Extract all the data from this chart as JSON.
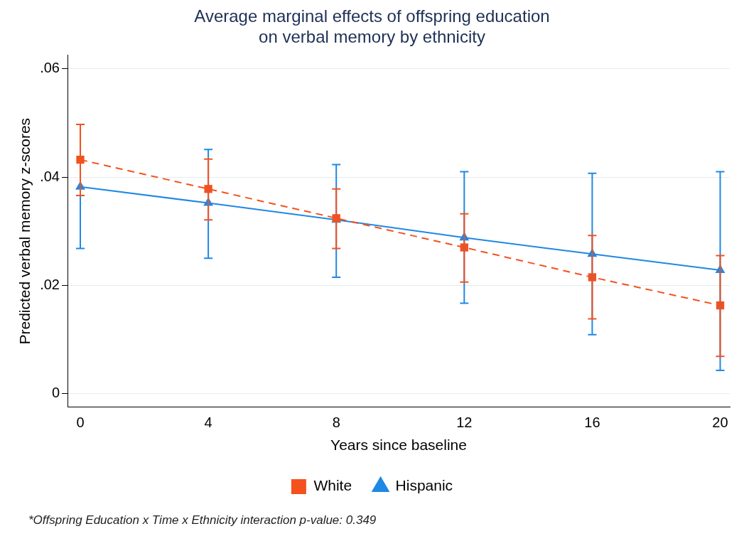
{
  "chart_data": {
    "type": "line",
    "title": "Average marginal effects of offspring education\non verbal memory by ethnicity",
    "xlabel": "Years since baseline",
    "ylabel": "Predicted verbal memory z-scores",
    "x": [
      0,
      4,
      8,
      12,
      16,
      20
    ],
    "series": [
      {
        "name": "Hispanic",
        "color": "#1f88e5",
        "marker": "triangle",
        "line_style": "solid",
        "values": [
          0.0382,
          0.0352,
          0.0321,
          0.0288,
          0.0258,
          0.0228
        ],
        "errors": [
          [
            0.0268,
            0.0497
          ],
          [
            0.025,
            0.0451
          ],
          [
            0.0215,
            0.0423
          ],
          [
            0.0167,
            0.041
          ],
          [
            0.0109,
            0.0407
          ],
          [
            0.0043,
            0.041
          ]
        ]
      },
      {
        "name": "White",
        "color": "#f4511e",
        "marker": "square",
        "line_style": "dashed",
        "values": [
          0.0432,
          0.0378,
          0.0324,
          0.027,
          0.0215,
          0.0163
        ],
        "errors": [
          [
            0.0366,
            0.0497
          ],
          [
            0.0321,
            0.0433
          ],
          [
            0.0268,
            0.0378
          ],
          [
            0.0206,
            0.0332
          ],
          [
            0.0138,
            0.0292
          ],
          [
            0.0069,
            0.0255
          ]
        ]
      }
    ],
    "xlim": [
      -0.4,
      20.3
    ],
    "xticks": [
      0,
      4,
      8,
      12,
      16,
      20
    ],
    "ylim": [
      -0.0025,
      0.0625
    ],
    "yticks": [
      {
        "value": 0,
        "label": "0"
      },
      {
        "value": 0.02,
        "label": ".02"
      },
      {
        "value": 0.04,
        "label": ".04"
      },
      {
        "value": 0.06,
        "label": ".06"
      }
    ],
    "grid": "y",
    "legend": "bottom",
    "annotations": [
      "*Offspring Education x Time x Ethnicity interaction p-value: 0.349"
    ]
  }
}
